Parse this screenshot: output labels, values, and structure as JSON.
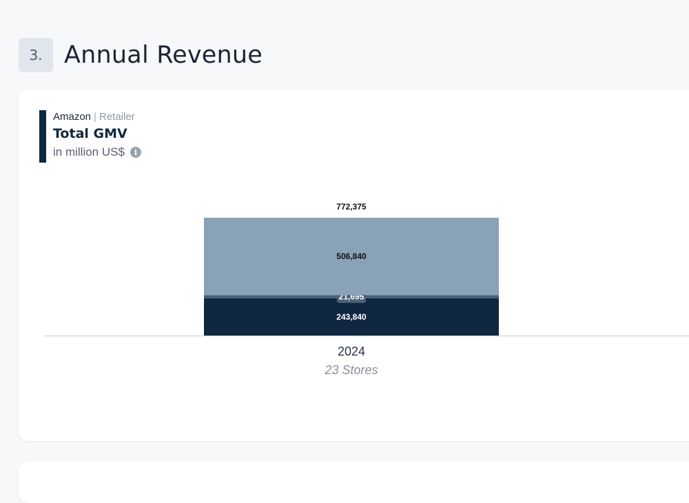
{
  "section": {
    "number": "3.",
    "title": "Annual Revenue"
  },
  "card": {
    "source_name": "Amazon",
    "source_separator": "|",
    "source_type": "Retailer",
    "metric_title": "Total GMV",
    "metric_unit": "in million US$",
    "info_icon": "info-icon"
  },
  "colors": {
    "top_segment": "#89a2b8",
    "middle_segment": "#4e6278",
    "bottom_segment": "#0f2740"
  },
  "chart_data": {
    "type": "bar",
    "stacked": true,
    "categories": [
      "2024"
    ],
    "category_sublabels": [
      "23 Stores"
    ],
    "series": [
      {
        "values": [
          243840
        ]
      },
      {
        "values": [
          21695
        ]
      },
      {
        "values": [
          506840
        ]
      }
    ],
    "totals": [
      772375
    ],
    "total_labels": [
      "772,375"
    ],
    "segment_labels": [
      "243,840",
      "21,695",
      "506,840"
    ],
    "ylim": [
      0,
      772375
    ],
    "grid": false,
    "legend": "none"
  }
}
